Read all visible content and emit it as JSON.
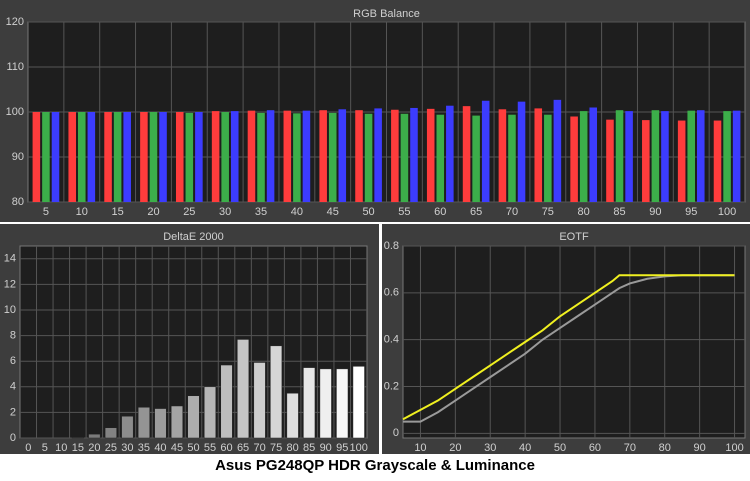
{
  "caption": "Asus PG248QP HDR Grayscale & Luminance",
  "chart_data": [
    {
      "type": "bar",
      "title": "RGB Balance",
      "categories": [
        "5",
        "10",
        "15",
        "20",
        "25",
        "30",
        "35",
        "40",
        "45",
        "50",
        "55",
        "60",
        "65",
        "70",
        "75",
        "80",
        "85",
        "90",
        "95",
        "100"
      ],
      "series": [
        {
          "color": "#ff3c3c",
          "values": [
            100,
            100,
            100,
            100,
            100,
            100.2,
            100.3,
            100.3,
            100.4,
            100.4,
            100.5,
            100.7,
            101.3,
            100.6,
            100.8,
            99,
            98.3,
            98.2,
            98.1,
            98.1
          ]
        },
        {
          "color": "#3cae4a",
          "values": [
            100,
            100,
            100,
            100,
            99.8,
            100,
            99.8,
            99.7,
            99.8,
            99.6,
            99.6,
            99.4,
            99.2,
            99.4,
            99.4,
            100.2,
            100.4,
            100.4,
            100.3,
            100.2
          ]
        },
        {
          "color": "#3c3cff",
          "values": [
            100,
            100,
            100,
            100,
            100,
            100.2,
            100.4,
            100.3,
            100.6,
            100.8,
            100.9,
            101.4,
            102.5,
            102.3,
            102.7,
            101,
            100.2,
            100.2,
            100.4,
            100.3
          ]
        }
      ],
      "ylim": [
        80,
        120
      ],
      "yticks": [
        80,
        90,
        100,
        110,
        120
      ],
      "grid": true
    },
    {
      "type": "bar",
      "title": "DeltaE 2000",
      "categories": [
        "0",
        "5",
        "10",
        "15",
        "20",
        "25",
        "30",
        "35",
        "40",
        "45",
        "50",
        "55",
        "60",
        "65",
        "70",
        "75",
        "80",
        "85",
        "90",
        "95",
        "100"
      ],
      "values": [
        0,
        0,
        0,
        0.05,
        0.3,
        0.8,
        1.7,
        2.4,
        2.3,
        2.5,
        3.3,
        4.0,
        5.7,
        7.7,
        5.9,
        7.2,
        3.5,
        5.5,
        5.4,
        5.4,
        5.6
      ],
      "ylim": [
        0,
        15
      ],
      "yticks": [
        0,
        2,
        4,
        6,
        8,
        10,
        12,
        14
      ],
      "grid": true
    },
    {
      "type": "line",
      "title": "EOTF",
      "x": [
        5,
        10,
        15,
        20,
        25,
        30,
        35,
        40,
        45,
        50,
        55,
        60,
        65,
        67,
        70,
        75,
        80,
        85,
        90,
        95,
        100
      ],
      "series": [
        {
          "color": "#9a9a9a",
          "values": [
            0.05,
            0.05,
            0.09,
            0.14,
            0.19,
            0.24,
            0.29,
            0.34,
            0.4,
            0.45,
            0.5,
            0.55,
            0.6,
            0.62,
            0.64,
            0.66,
            0.67,
            0.675,
            0.675,
            0.675,
            0.675
          ]
        },
        {
          "color": "#f0f020",
          "values": [
            0.06,
            0.1,
            0.14,
            0.19,
            0.24,
            0.29,
            0.34,
            0.39,
            0.44,
            0.5,
            0.55,
            0.6,
            0.65,
            0.675,
            0.675,
            0.675,
            0.675,
            0.675,
            0.675,
            0.675,
            0.675
          ]
        }
      ],
      "xlim": [
        5,
        103
      ],
      "ylim": [
        -0.02,
        0.8
      ],
      "xticks": [
        10,
        20,
        30,
        40,
        50,
        60,
        70,
        80,
        90,
        100
      ],
      "yticks": [
        0,
        0.2,
        0.4,
        0.6,
        0.8
      ],
      "grid": true
    }
  ]
}
